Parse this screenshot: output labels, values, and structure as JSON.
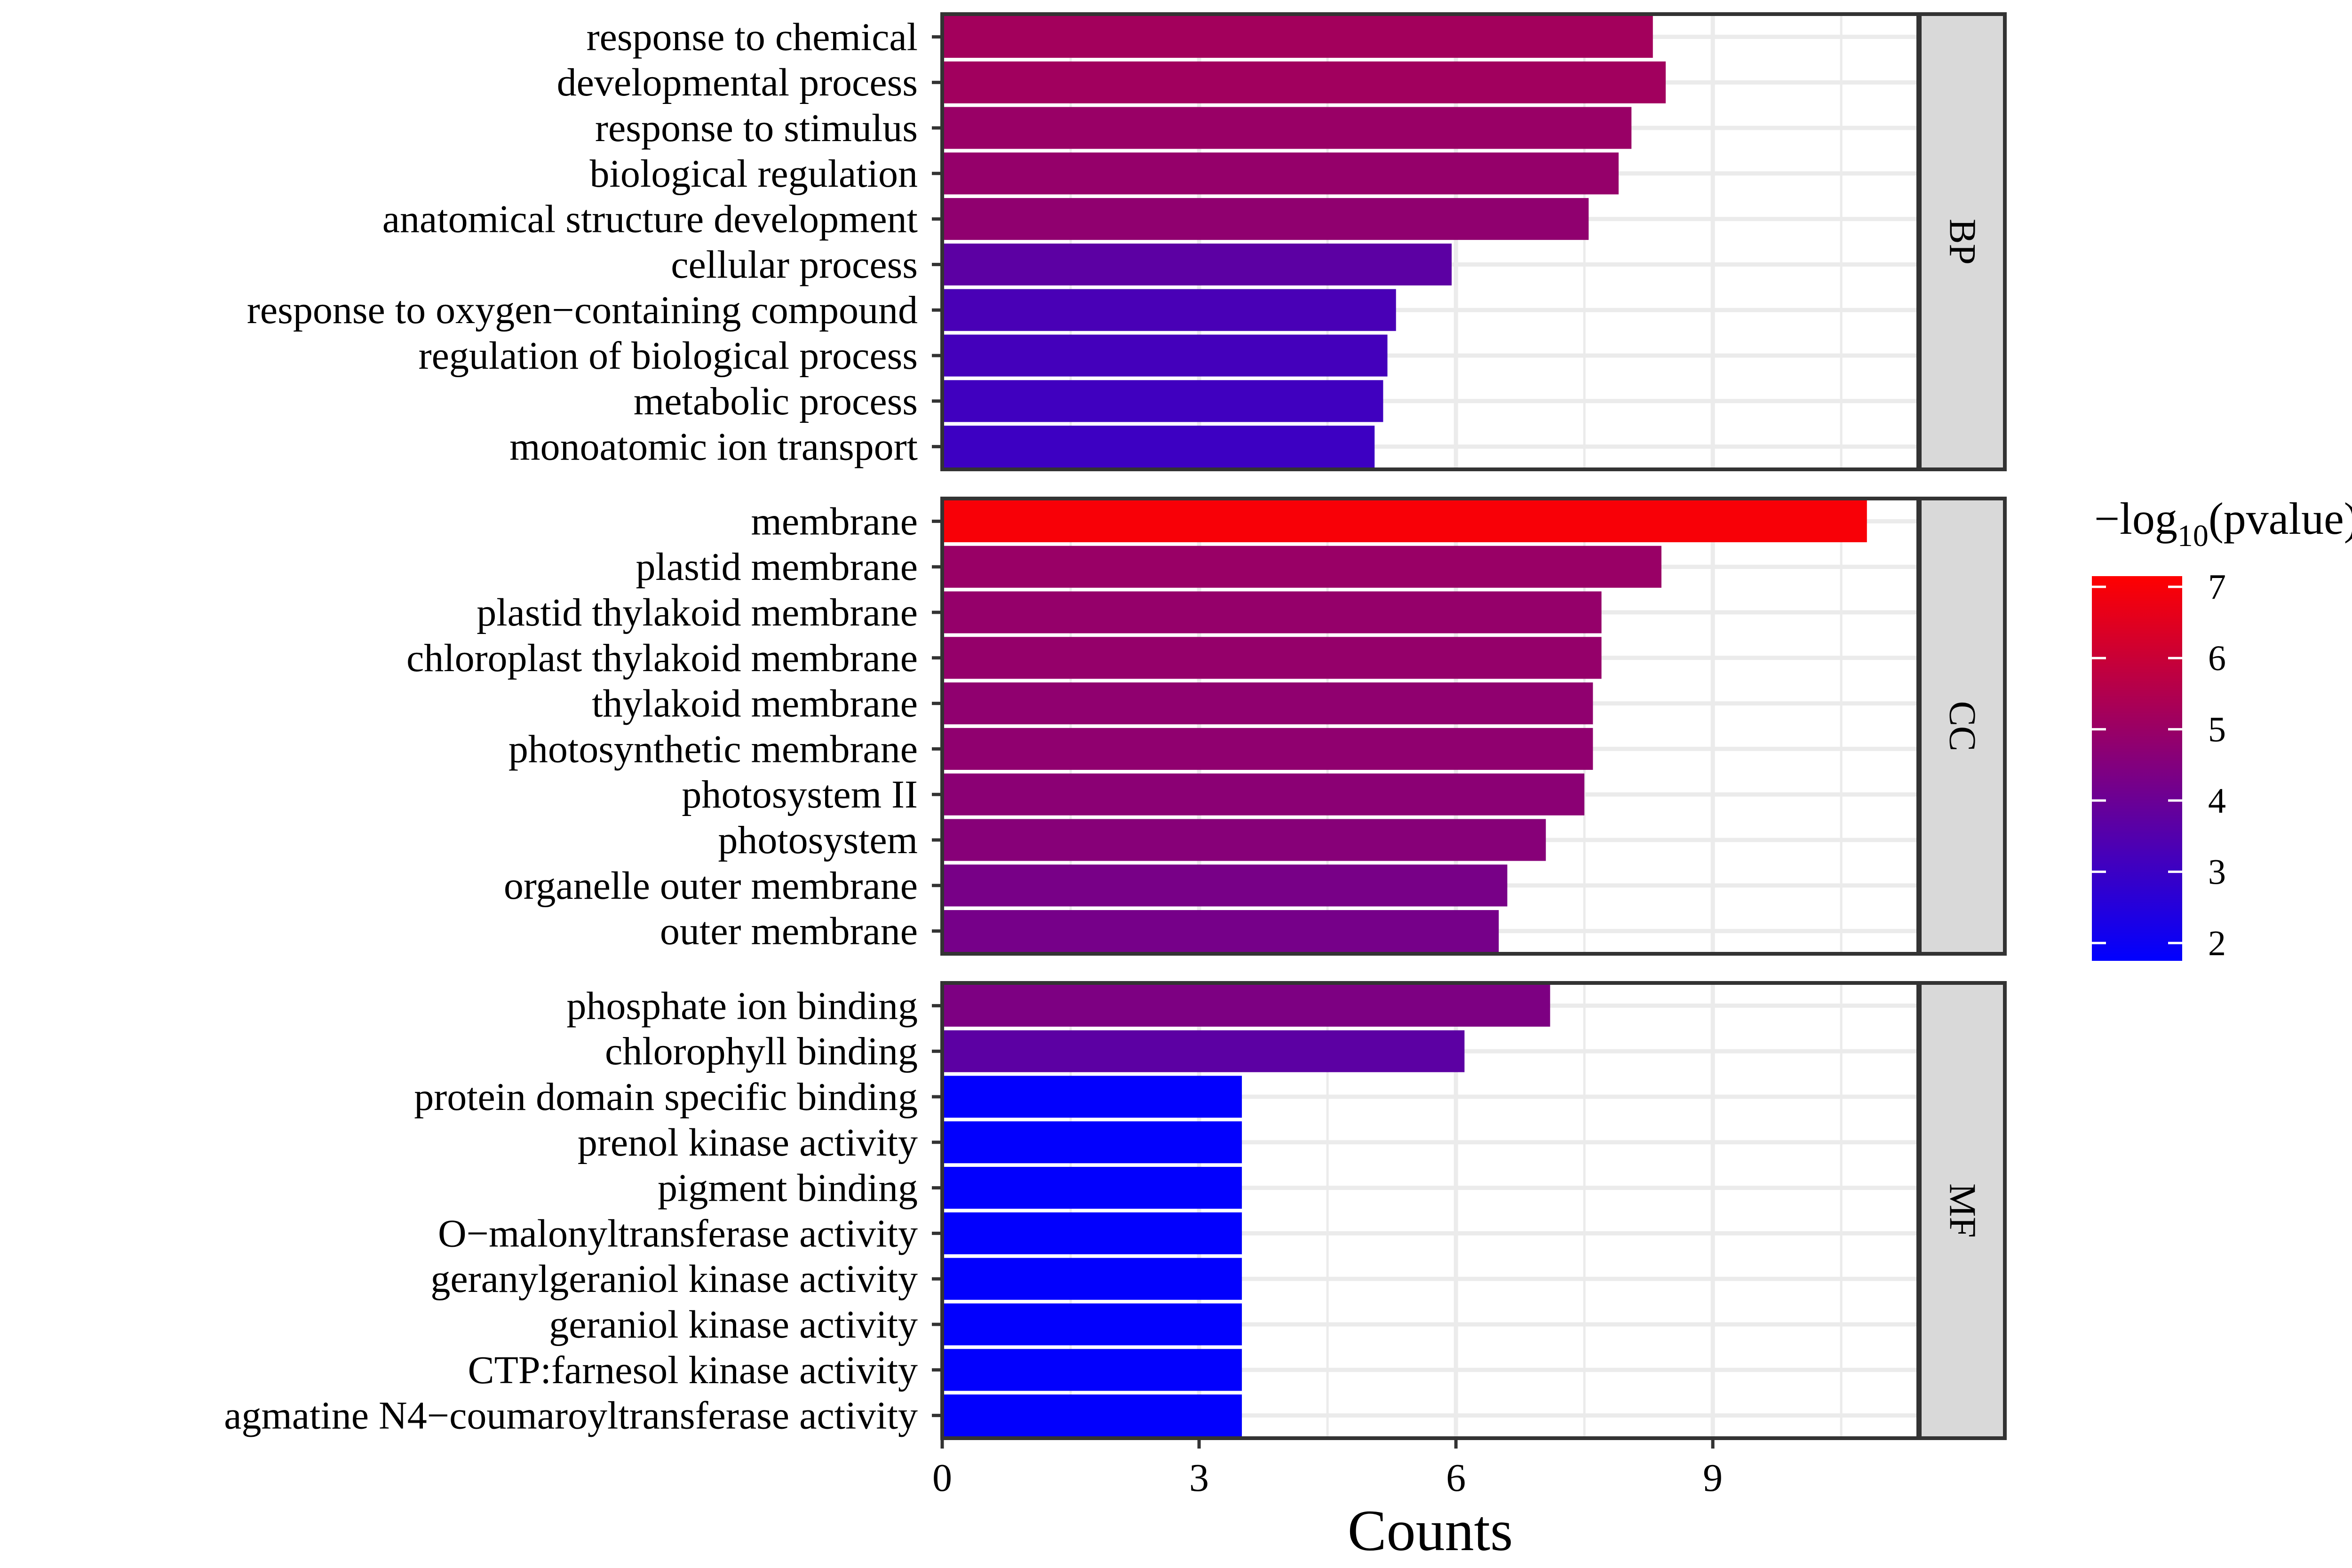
{
  "chart_data": {
    "type": "bar",
    "orientation": "horizontal",
    "xlabel": "Counts",
    "ylabel": "",
    "x_ticks": [
      0,
      3,
      6,
      9
    ],
    "xlim": [
      0,
      11.4
    ],
    "grid": true,
    "legend_position": "right",
    "color_legend": {
      "title_prefix": "−log",
      "title_subscript": "10",
      "title_suffix": "(pvalue)",
      "ticks": [
        "7",
        "6",
        "5",
        "4",
        "3",
        "2"
      ],
      "range": [
        1.75,
        7.15
      ],
      "low_color": "#0000ff",
      "high_color": "#ff0000"
    },
    "panels": [
      {
        "facet": "BP",
        "categories": [
          "response to chemical",
          "developmental process",
          "response to stimulus",
          "biological regulation",
          "anatomical structure development",
          "cellular process",
          "response to oxygen−containing compound",
          "regulation of biological process",
          "metabolic process",
          "monoatomic ion transport"
        ],
        "values": [
          8.3,
          8.45,
          8.05,
          7.9,
          7.55,
          5.95,
          5.3,
          5.2,
          5.15,
          5.05
        ],
        "neg_log10_pvalue": [
          5.2,
          5.15,
          5.0,
          4.9,
          4.8,
          3.7,
          3.3,
          3.2,
          3.1,
          3.05
        ]
      },
      {
        "facet": "CC",
        "categories": [
          "membrane",
          "plastid membrane",
          "plastid thylakoid membrane",
          "chloroplast thylakoid membrane",
          "thylakoid membrane",
          "photosynthetic membrane",
          "photosystem II",
          "photosystem",
          "organelle outer membrane",
          "outer membrane"
        ],
        "values": [
          10.8,
          8.4,
          7.7,
          7.7,
          7.6,
          7.6,
          7.5,
          7.05,
          6.6,
          6.5
        ],
        "neg_log10_pvalue": [
          7.0,
          5.0,
          4.9,
          4.9,
          4.8,
          4.8,
          4.7,
          4.6,
          4.3,
          4.25
        ]
      },
      {
        "facet": "MF",
        "categories": [
          "phosphate ion binding",
          "chlorophyll binding",
          "protein domain specific binding",
          "prenol kinase activity",
          "pigment binding",
          "O−malonyltransferase activity",
          "geranylgeraniol kinase activity",
          "geraniol kinase activity",
          "CTP:farnesol kinase activity",
          "agmatine N4−coumaroyltransferase activity"
        ],
        "values": [
          7.1,
          6.1,
          3.5,
          3.5,
          3.5,
          3.5,
          3.5,
          3.5,
          3.5,
          3.5
        ],
        "neg_log10_pvalue": [
          4.4,
          3.7,
          1.8,
          1.8,
          1.8,
          1.8,
          1.8,
          1.8,
          1.8,
          1.8
        ]
      }
    ]
  }
}
